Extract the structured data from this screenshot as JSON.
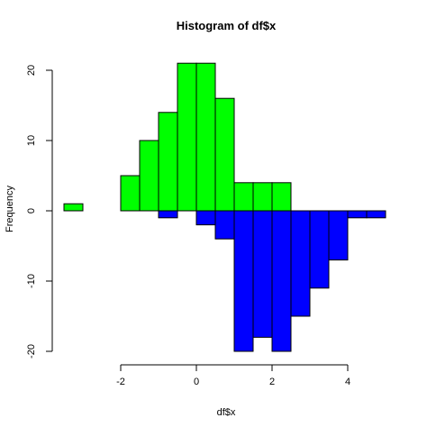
{
  "chart_data": {
    "type": "bar",
    "title": "Histogram of df$x",
    "xlabel": "df$x",
    "ylabel": "Frequency",
    "bin_width": 0.5,
    "xlim": [
      -3.5,
      5.0
    ],
    "ylim": [
      -21,
      22
    ],
    "x_ticks": [
      -2,
      0,
      2,
      4
    ],
    "x_tick_labels": [
      "-2",
      "0",
      "2",
      "4"
    ],
    "y_ticks": [
      -20,
      -10,
      0,
      10,
      20
    ],
    "y_tick_labels": [
      "-20",
      "-10",
      "0",
      "10",
      "20"
    ],
    "series": [
      {
        "color": "#00ff00",
        "bin_starts": [
          -3.5,
          -3.0,
          -2.5,
          -2.0,
          -1.5,
          -1.0,
          -0.5,
          0.0,
          0.5,
          1.0,
          1.5,
          2.0
        ],
        "values": [
          1,
          0,
          0,
          5,
          10,
          14,
          21,
          21,
          16,
          4,
          4,
          4
        ]
      },
      {
        "color": "#0000ff",
        "bin_starts": [
          -1.0,
          -0.5,
          0.0,
          0.5,
          1.0,
          1.5,
          2.0,
          2.5,
          3.0,
          3.5,
          4.0,
          4.5
        ],
        "values": [
          -1,
          0,
          -2,
          -4,
          -20,
          -18,
          -20,
          -15,
          -11,
          -7,
          -1,
          -1
        ]
      }
    ]
  }
}
